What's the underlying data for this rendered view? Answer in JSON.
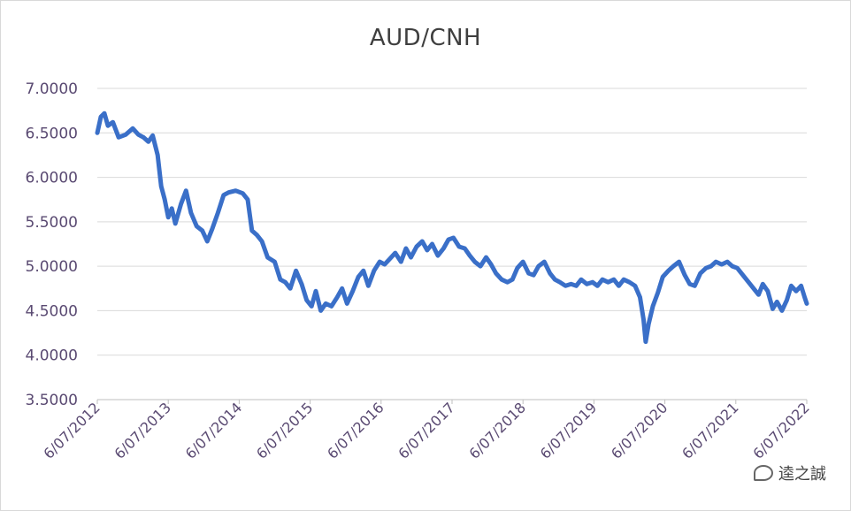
{
  "chart_data": {
    "type": "line",
    "title": "AUD/CNH",
    "xlabel": "",
    "ylabel": "",
    "ylim": [
      3.5,
      7.0
    ],
    "yticks": [
      "7.0000",
      "6.5000",
      "6.0000",
      "5.5000",
      "5.0000",
      "4.5000",
      "4.0000",
      "3.5000"
    ],
    "ytick_values": [
      7.0,
      6.5,
      6.0,
      5.5,
      5.0,
      4.5,
      4.0,
      3.5
    ],
    "xticks": [
      "6/07/2012",
      "6/07/2013",
      "6/07/2014",
      "6/07/2015",
      "6/07/2016",
      "6/07/2017",
      "6/07/2018",
      "6/07/2019",
      "6/07/2020",
      "6/07/2021",
      "6/07/2022"
    ],
    "xlim": [
      2012.5,
      2022.5
    ],
    "grid": "horizontal",
    "line_color": "#3a6fc8",
    "series": [
      {
        "values": [
          [
            2012.5,
            6.5
          ],
          [
            2012.55,
            6.68
          ],
          [
            2012.6,
            6.72
          ],
          [
            2012.65,
            6.58
          ],
          [
            2012.72,
            6.62
          ],
          [
            2012.8,
            6.45
          ],
          [
            2012.9,
            6.48
          ],
          [
            2013.0,
            6.55
          ],
          [
            2013.08,
            6.48
          ],
          [
            2013.15,
            6.45
          ],
          [
            2013.22,
            6.4
          ],
          [
            2013.28,
            6.47
          ],
          [
            2013.35,
            6.25
          ],
          [
            2013.4,
            5.9
          ],
          [
            2013.45,
            5.75
          ],
          [
            2013.5,
            5.55
          ],
          [
            2013.55,
            5.65
          ],
          [
            2013.6,
            5.48
          ],
          [
            2013.68,
            5.7
          ],
          [
            2013.75,
            5.85
          ],
          [
            2013.82,
            5.6
          ],
          [
            2013.9,
            5.45
          ],
          [
            2013.98,
            5.4
          ],
          [
            2014.05,
            5.28
          ],
          [
            2014.12,
            5.42
          ],
          [
            2014.2,
            5.6
          ],
          [
            2014.28,
            5.8
          ],
          [
            2014.35,
            5.83
          ],
          [
            2014.45,
            5.85
          ],
          [
            2014.55,
            5.82
          ],
          [
            2014.62,
            5.75
          ],
          [
            2014.68,
            5.4
          ],
          [
            2014.75,
            5.35
          ],
          [
            2014.82,
            5.28
          ],
          [
            2014.9,
            5.1
          ],
          [
            2015.0,
            5.05
          ],
          [
            2015.08,
            4.85
          ],
          [
            2015.15,
            4.82
          ],
          [
            2015.22,
            4.75
          ],
          [
            2015.3,
            4.95
          ],
          [
            2015.38,
            4.8
          ],
          [
            2015.45,
            4.62
          ],
          [
            2015.52,
            4.55
          ],
          [
            2015.58,
            4.72
          ],
          [
            2015.65,
            4.5
          ],
          [
            2015.72,
            4.58
          ],
          [
            2015.8,
            4.55
          ],
          [
            2015.88,
            4.65
          ],
          [
            2015.95,
            4.75
          ],
          [
            2016.02,
            4.58
          ],
          [
            2016.1,
            4.72
          ],
          [
            2016.18,
            4.88
          ],
          [
            2016.25,
            4.95
          ],
          [
            2016.32,
            4.78
          ],
          [
            2016.4,
            4.95
          ],
          [
            2016.48,
            5.05
          ],
          [
            2016.55,
            5.02
          ],
          [
            2016.62,
            5.08
          ],
          [
            2016.7,
            5.15
          ],
          [
            2016.78,
            5.05
          ],
          [
            2016.85,
            5.2
          ],
          [
            2016.92,
            5.1
          ],
          [
            2017.0,
            5.22
          ],
          [
            2017.08,
            5.28
          ],
          [
            2017.15,
            5.18
          ],
          [
            2017.22,
            5.25
          ],
          [
            2017.3,
            5.12
          ],
          [
            2017.38,
            5.2
          ],
          [
            2017.45,
            5.3
          ],
          [
            2017.52,
            5.32
          ],
          [
            2017.6,
            5.22
          ],
          [
            2017.68,
            5.2
          ],
          [
            2017.75,
            5.12
          ],
          [
            2017.82,
            5.05
          ],
          [
            2017.9,
            5.0
          ],
          [
            2017.98,
            5.1
          ],
          [
            2018.05,
            5.02
          ],
          [
            2018.12,
            4.92
          ],
          [
            2018.2,
            4.85
          ],
          [
            2018.28,
            4.82
          ],
          [
            2018.35,
            4.85
          ],
          [
            2018.42,
            4.98
          ],
          [
            2018.5,
            5.05
          ],
          [
            2018.58,
            4.92
          ],
          [
            2018.65,
            4.9
          ],
          [
            2018.72,
            5.0
          ],
          [
            2018.8,
            5.05
          ],
          [
            2018.88,
            4.92
          ],
          [
            2018.95,
            4.85
          ],
          [
            2019.02,
            4.82
          ],
          [
            2019.1,
            4.78
          ],
          [
            2019.18,
            4.8
          ],
          [
            2019.25,
            4.78
          ],
          [
            2019.32,
            4.85
          ],
          [
            2019.4,
            4.8
          ],
          [
            2019.48,
            4.82
          ],
          [
            2019.55,
            4.78
          ],
          [
            2019.62,
            4.85
          ],
          [
            2019.7,
            4.82
          ],
          [
            2019.78,
            4.85
          ],
          [
            2019.85,
            4.78
          ],
          [
            2019.92,
            4.85
          ],
          [
            2020.0,
            4.82
          ],
          [
            2020.08,
            4.78
          ],
          [
            2020.15,
            4.65
          ],
          [
            2020.2,
            4.4
          ],
          [
            2020.23,
            4.15
          ],
          [
            2020.27,
            4.35
          ],
          [
            2020.33,
            4.55
          ],
          [
            2020.4,
            4.7
          ],
          [
            2020.47,
            4.88
          ],
          [
            2020.55,
            4.95
          ],
          [
            2020.62,
            5.0
          ],
          [
            2020.7,
            5.05
          ],
          [
            2020.78,
            4.9
          ],
          [
            2020.85,
            4.8
          ],
          [
            2020.92,
            4.78
          ],
          [
            2021.0,
            4.92
          ],
          [
            2021.08,
            4.98
          ],
          [
            2021.15,
            5.0
          ],
          [
            2021.22,
            5.05
          ],
          [
            2021.3,
            5.02
          ],
          [
            2021.38,
            5.05
          ],
          [
            2021.45,
            5.0
          ],
          [
            2021.52,
            4.98
          ],
          [
            2021.6,
            4.9
          ],
          [
            2021.68,
            4.82
          ],
          [
            2021.75,
            4.75
          ],
          [
            2021.82,
            4.68
          ],
          [
            2021.88,
            4.8
          ],
          [
            2021.95,
            4.72
          ],
          [
            2022.02,
            4.52
          ],
          [
            2022.08,
            4.6
          ],
          [
            2022.15,
            4.5
          ],
          [
            2022.22,
            4.62
          ],
          [
            2022.28,
            4.78
          ],
          [
            2022.35,
            4.72
          ],
          [
            2022.42,
            4.78
          ],
          [
            2022.47,
            4.65
          ],
          [
            2022.5,
            4.58
          ]
        ]
      }
    ]
  },
  "watermark": {
    "text": "逵之誠",
    "icon": "wechat-icon"
  }
}
